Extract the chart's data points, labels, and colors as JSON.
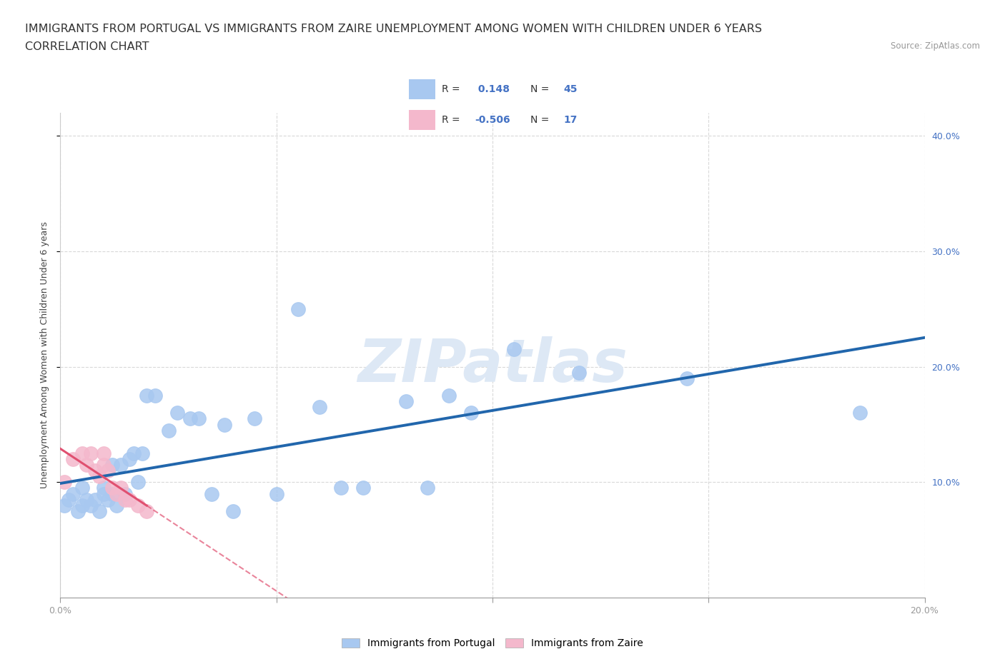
{
  "title_line1": "IMMIGRANTS FROM PORTUGAL VS IMMIGRANTS FROM ZAIRE UNEMPLOYMENT AMONG WOMEN WITH CHILDREN UNDER 6 YEARS",
  "title_line2": "CORRELATION CHART",
  "source": "Source: ZipAtlas.com",
  "ylabel": "Unemployment Among Women with Children Under 6 years",
  "xlim": [
    0.0,
    0.2
  ],
  "ylim": [
    0.0,
    0.42
  ],
  "xticks": [
    0.0,
    0.05,
    0.1,
    0.15,
    0.2
  ],
  "yticks": [
    0.1,
    0.2,
    0.3,
    0.4
  ],
  "color_portugal": "#a8c8f0",
  "color_zaire": "#f4b8cc",
  "color_portugal_line": "#2166ac",
  "color_zaire_line": "#e05070",
  "R_portugal": 0.148,
  "N_portugal": 45,
  "R_zaire": -0.506,
  "N_zaire": 17,
  "portugal_x": [
    0.001,
    0.002,
    0.003,
    0.004,
    0.005,
    0.005,
    0.006,
    0.007,
    0.008,
    0.009,
    0.01,
    0.01,
    0.011,
    0.012,
    0.012,
    0.013,
    0.014,
    0.015,
    0.016,
    0.017,
    0.018,
    0.019,
    0.02,
    0.022,
    0.025,
    0.027,
    0.03,
    0.032,
    0.035,
    0.038,
    0.04,
    0.045,
    0.05,
    0.055,
    0.06,
    0.065,
    0.07,
    0.08,
    0.085,
    0.09,
    0.095,
    0.105,
    0.12,
    0.145,
    0.185
  ],
  "portugal_y": [
    0.08,
    0.085,
    0.09,
    0.075,
    0.095,
    0.08,
    0.085,
    0.08,
    0.085,
    0.075,
    0.095,
    0.09,
    0.085,
    0.09,
    0.115,
    0.08,
    0.115,
    0.09,
    0.12,
    0.125,
    0.1,
    0.125,
    0.175,
    0.175,
    0.145,
    0.16,
    0.155,
    0.155,
    0.09,
    0.15,
    0.075,
    0.155,
    0.09,
    0.25,
    0.165,
    0.095,
    0.095,
    0.17,
    0.095,
    0.175,
    0.16,
    0.215,
    0.195,
    0.19,
    0.16
  ],
  "zaire_x": [
    0.001,
    0.003,
    0.005,
    0.006,
    0.007,
    0.008,
    0.009,
    0.01,
    0.01,
    0.011,
    0.012,
    0.013,
    0.014,
    0.015,
    0.016,
    0.018,
    0.02
  ],
  "zaire_y": [
    0.1,
    0.12,
    0.125,
    0.115,
    0.125,
    0.11,
    0.105,
    0.115,
    0.125,
    0.11,
    0.095,
    0.09,
    0.095,
    0.085,
    0.085,
    0.08,
    0.075
  ],
  "background_color": "#ffffff",
  "grid_color": "#d0d0d0",
  "watermark_text": "ZIPatlas",
  "watermark_color": "#dde8f5",
  "title_fontsize": 11.5,
  "axis_label_fontsize": 9,
  "tick_fontsize": 9,
  "legend_fontsize": 10
}
